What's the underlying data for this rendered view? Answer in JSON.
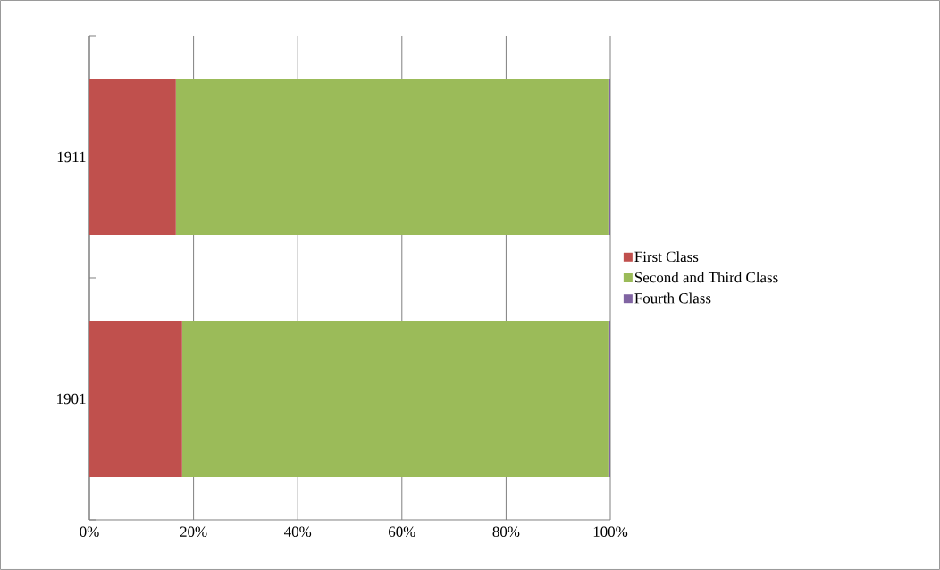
{
  "chart_data": {
    "type": "bar",
    "orientation": "horizontal",
    "stacked": true,
    "categories": [
      "1911",
      "1901"
    ],
    "series": [
      {
        "name": "First Class",
        "color": "#c0504d",
        "values": [
          16.6,
          17.8
        ]
      },
      {
        "name": "Second and Third Class",
        "color": "#9bbb59",
        "values": [
          83.2,
          82.0
        ]
      },
      {
        "name": "Fourth Class",
        "color": "#8064a2",
        "values": [
          0.2,
          0.2
        ]
      }
    ],
    "xlim": [
      0,
      100
    ],
    "xticks": [
      {
        "value": 0,
        "label": "0%"
      },
      {
        "value": 20,
        "label": "20%"
      },
      {
        "value": 40,
        "label": "40%"
      },
      {
        "value": 60,
        "label": "60%"
      },
      {
        "value": 80,
        "label": "80%"
      },
      {
        "value": 100,
        "label": "100%"
      }
    ],
    "grid": "x",
    "legend": "right"
  }
}
